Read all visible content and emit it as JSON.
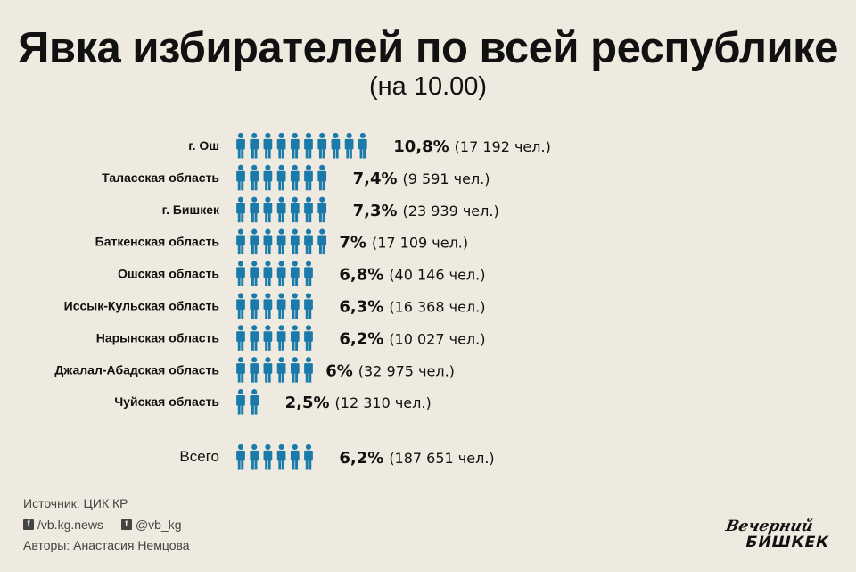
{
  "title": "Явка избирателей по всей республике",
  "subtitle": "(на 10.00)",
  "colors": {
    "icon": "#1a7aaa",
    "background": "#efeadf",
    "text": "#111111"
  },
  "chart_data": {
    "type": "bar",
    "subtype": "pictogram",
    "unit_icon": "person-icon",
    "categories": [
      "г. Ош",
      "Таласская область",
      "г. Бишкек",
      "Баткенская область",
      "Ошская область",
      "Иссык-Кульская область",
      "Нарынская область",
      "Джалал-Абадская область",
      "Чуйская область"
    ],
    "values": [
      10.8,
      7.4,
      7.3,
      7,
      6.8,
      6.3,
      6.2,
      6,
      2.5
    ],
    "value_labels": [
      "10,8%",
      "7,4%",
      "7,3%",
      "7%",
      "6,8%",
      "6,3%",
      "6,2%",
      "6%",
      "2,5%"
    ],
    "counts": [
      "(17 192 чел.)",
      "(9 591 чел.)",
      "(23 939 чел.)",
      "(17 109 чел.)",
      "(40 146 чел.)",
      "(16 368 чел.)",
      "(10 027 чел.)",
      "(32 975 чел.)",
      "(12 310 чел.)"
    ],
    "total": {
      "label": "Всего",
      "value": 6.2,
      "value_label": "6,2%",
      "count": "(187 651 чел.)"
    }
  },
  "footer": {
    "source": "Источник:  ЦИК КР",
    "facebook_icon": "facebook-icon",
    "facebook": "/vb.kg.news",
    "twitter_icon": "twitter-icon",
    "twitter": "@vb_kg",
    "authors": "Авторы: Анастасия Немцова"
  },
  "logo": {
    "line1": "Вечерний",
    "line2": "БИШКЕК"
  }
}
